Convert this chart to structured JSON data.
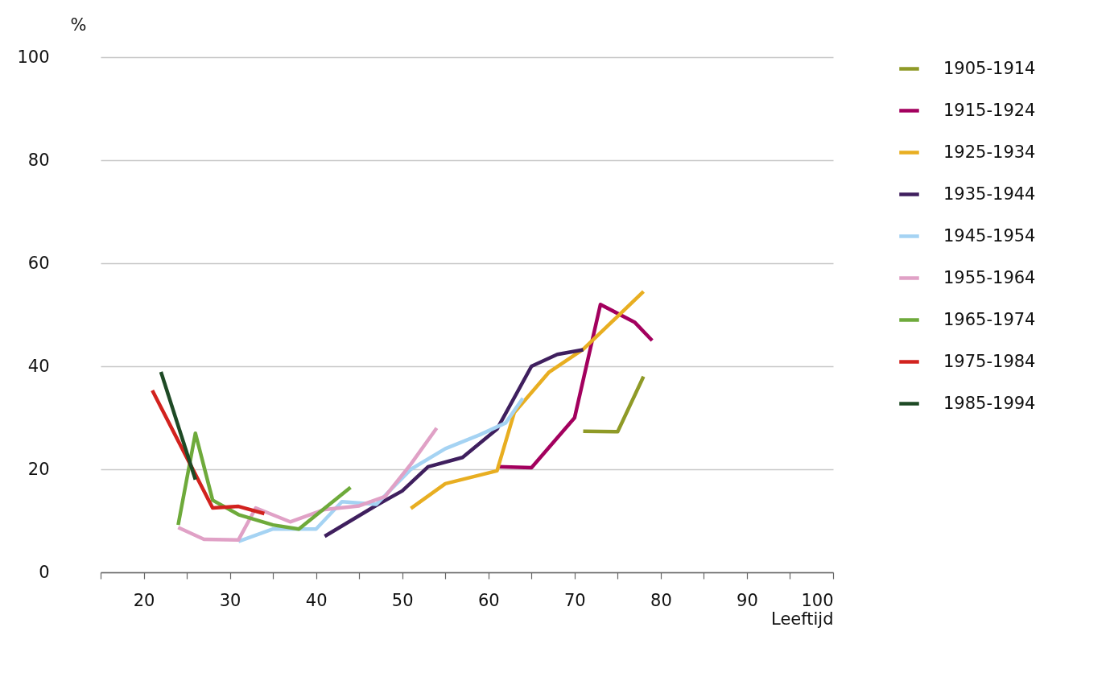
{
  "chart_data": {
    "type": "line",
    "xlabel": "Leeftijd",
    "ylabel": "%",
    "xlim": [
      15,
      100
    ],
    "xticks": [
      {
        "value": 15,
        "label": null
      },
      20,
      {
        "value": 25,
        "label": null
      },
      30,
      {
        "value": 35,
        "label": null
      },
      40,
      {
        "value": 45,
        "label": null
      },
      50,
      {
        "value": 55,
        "label": null
      },
      60,
      {
        "value": 65,
        "label": null
      },
      70,
      {
        "value": 75,
        "label": null
      },
      80,
      {
        "value": 85,
        "label": null
      },
      90,
      {
        "value": 95,
        "label": null
      },
      100
    ],
    "ylim": [
      0,
      100
    ],
    "yticks": [
      0,
      20,
      40,
      60,
      80,
      100
    ],
    "grid": "y",
    "legend": "right",
    "series": [
      {
        "name": "1905-1914",
        "color": "#8f9a27",
        "x": [
          71,
          75,
          78
        ],
        "values": [
          27.4,
          27.3,
          38
        ]
      },
      {
        "name": "1915-1924",
        "color": "#a3005e",
        "x": [
          61,
          65,
          70,
          73,
          77,
          79
        ],
        "values": [
          20.5,
          20.3,
          30,
          52,
          48.5,
          45
        ]
      },
      {
        "name": "1925-1934",
        "color": "#e8ae21",
        "x": [
          51,
          55,
          61,
          63,
          67,
          71,
          78
        ],
        "values": [
          12.4,
          17.2,
          19.7,
          31,
          38.8,
          43.3,
          54.5
        ]
      },
      {
        "name": "1935-1944",
        "color": "#3f1f5e",
        "x": [
          41,
          47,
          50,
          53,
          57,
          61,
          65,
          68,
          71
        ],
        "values": [
          7,
          13,
          15.8,
          20.5,
          22.3,
          27.8,
          40,
          42.3,
          43.2
        ]
      },
      {
        "name": "1945-1954",
        "color": "#a5d3f3",
        "x": [
          31,
          35,
          40,
          43,
          47,
          51,
          55,
          59,
          62,
          64
        ],
        "values": [
          6,
          8.4,
          8.4,
          13.7,
          13.2,
          20,
          24,
          26.7,
          29,
          33.8
        ]
      },
      {
        "name": "1955-1964",
        "color": "#e0a1c6",
        "x": [
          24,
          27,
          31,
          33,
          37,
          41,
          45,
          48,
          51,
          54
        ],
        "values": [
          8.7,
          6.4,
          6.3,
          12.5,
          9.8,
          12.2,
          12.9,
          14.7,
          21,
          28
        ]
      },
      {
        "name": "1965-1974",
        "color": "#6eaa3b",
        "x": [
          24,
          26,
          28,
          31,
          35,
          38,
          44
        ],
        "values": [
          9.2,
          27,
          14,
          11.2,
          9.2,
          8.4,
          16.5
        ]
      },
      {
        "name": "1975-1984",
        "color": "#d2221e",
        "x": [
          21,
          26,
          28,
          31,
          34
        ],
        "values": [
          35.3,
          19,
          12.5,
          12.8,
          11.4
        ]
      },
      {
        "name": "1985-1994",
        "color": "#1e4a25",
        "x": [
          22,
          26
        ],
        "values": [
          38.9,
          18
        ]
      }
    ]
  }
}
